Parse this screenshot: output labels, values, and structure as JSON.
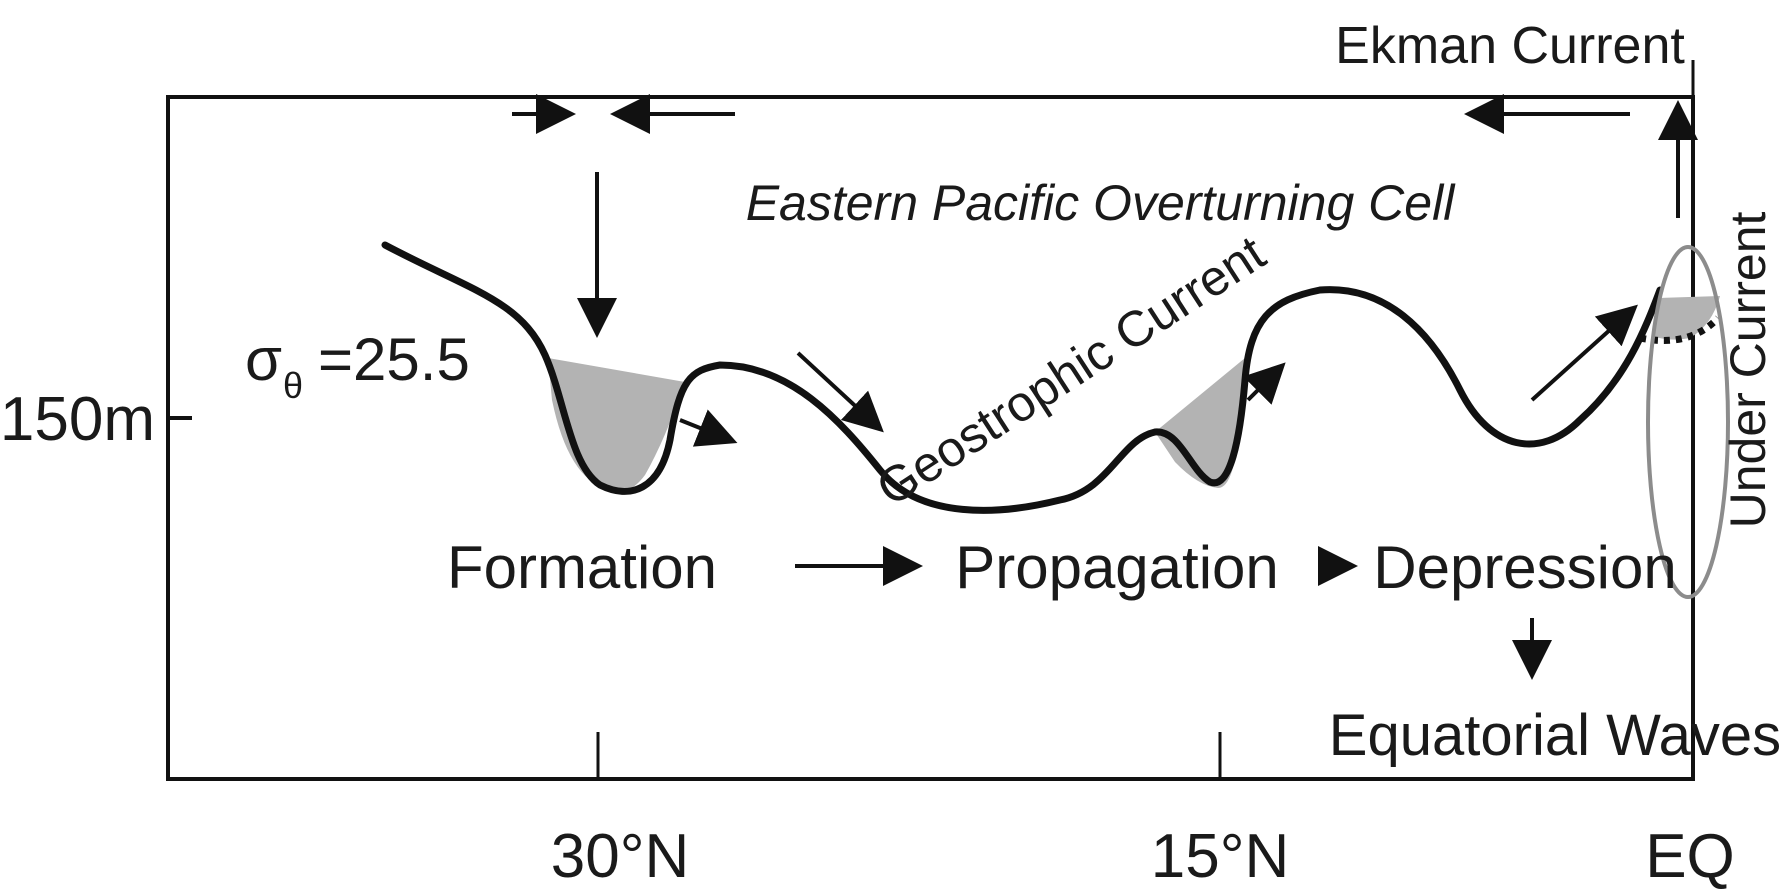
{
  "labels": {
    "ekman_current": "Ekman Current",
    "overturning_cell": "Eastern Pacific Overturning Cell",
    "geostrophic_current": "Geostrophic Current",
    "isopycnal_symbol": "σ",
    "isopycnal_subscript": "θ",
    "isopycnal_value": "=25.5",
    "depth_tick": "150m",
    "under_current": "Under Current",
    "formation": "Formation",
    "propagation": "Propagation",
    "depression": "Depression",
    "equatorial_waves": "Equatorial Waves"
  },
  "x_axis": {
    "ticks": [
      "30°N",
      "15°N",
      "EQ"
    ]
  },
  "colors": {
    "line": "#111111",
    "shading": "#b3b3b3",
    "ellipse": "#8c8c8c"
  }
}
